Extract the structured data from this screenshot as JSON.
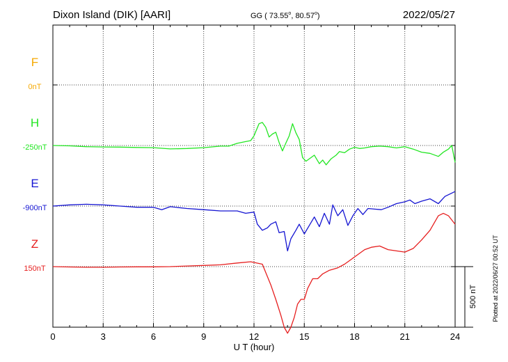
{
  "header": {
    "station": "Dixon Island (DIK)  [AARI]",
    "coords_prefix": "GG ( 73.55",
    "coords_sep": ",  80.57",
    "coords_suffix": ")",
    "degree_mark": "o",
    "date": "2022/05/27"
  },
  "footer_note": "Plotted at 2022/06/27 00:52 UT",
  "chart_data": {
    "type": "line",
    "title": "",
    "xlabel": "U T (hour)",
    "ylabel": "",
    "xlim": [
      0,
      24
    ],
    "xticks": [
      "0",
      "3",
      "6",
      "9",
      "12",
      "15",
      "18",
      "21",
      "24"
    ],
    "grid": true,
    "scale_bar": {
      "label": "500 nT",
      "value": 500
    },
    "series": [
      {
        "name": "F",
        "baseline_label": "0nT",
        "color": "#f5a800",
        "x": [],
        "y": []
      },
      {
        "name": "H",
        "baseline_label": "-250nT",
        "color": "#22e622",
        "x": [
          0,
          1,
          2,
          3,
          4,
          5,
          6,
          7,
          8,
          9,
          10,
          10.5,
          11,
          11.5,
          11.8,
          12,
          12.3,
          12.5,
          12.7,
          12.9,
          13.1,
          13.3,
          13.5,
          13.7,
          13.9,
          14.1,
          14.3,
          14.5,
          14.7,
          14.9,
          15.1,
          15.3,
          15.6,
          15.9,
          16.1,
          16.3,
          16.6,
          16.9,
          17.1,
          17.4,
          17.7,
          18,
          18.3,
          18.6,
          19,
          19.5,
          20,
          20.5,
          21,
          21.5,
          22,
          22.5,
          23,
          23.3,
          23.6,
          23.8,
          24
        ],
        "y": [
          0,
          -3,
          -10,
          -12,
          -13,
          -16,
          -18,
          -28,
          -25,
          -18,
          -5,
          -5,
          18,
          32,
          40,
          80,
          180,
          190,
          150,
          70,
          95,
          110,
          25,
          -45,
          20,
          80,
          180,
          105,
          50,
          -100,
          -130,
          -110,
          -80,
          -150,
          -120,
          -160,
          -110,
          -80,
          -50,
          -60,
          -30,
          -15,
          -25,
          -20,
          -10,
          -5,
          -10,
          -20,
          -10,
          -30,
          -55,
          -65,
          -90,
          -55,
          -30,
          0,
          -140
        ]
      },
      {
        "name": "E",
        "baseline_label": "-900nT",
        "color": "#1414d2",
        "x": [
          0,
          1,
          2,
          3,
          4,
          5,
          6,
          6.5,
          7,
          8,
          9,
          10,
          11,
          11.5,
          12,
          12.2,
          12.5,
          12.8,
          13,
          13.3,
          13.5,
          13.8,
          14,
          14.2,
          14.5,
          14.7,
          15,
          15.3,
          15.6,
          15.9,
          16.2,
          16.5,
          16.7,
          17,
          17.3,
          17.6,
          17.9,
          18.2,
          18.5,
          18.8,
          19.2,
          19.6,
          20,
          20.5,
          21,
          21.3,
          21.6,
          22,
          22.5,
          23,
          23.4,
          23.7,
          24
        ],
        "y": [
          0,
          10,
          15,
          10,
          0,
          -10,
          -10,
          -30,
          -5,
          -20,
          -30,
          -40,
          -40,
          -60,
          -50,
          -150,
          -200,
          -180,
          -150,
          -130,
          -220,
          -210,
          -370,
          -270,
          -200,
          -150,
          -230,
          -160,
          -90,
          -170,
          -60,
          -150,
          10,
          -80,
          -30,
          -160,
          -80,
          -20,
          -70,
          -20,
          -25,
          -30,
          -10,
          20,
          35,
          50,
          20,
          40,
          60,
          20,
          80,
          100,
          120
        ]
      },
      {
        "name": "Z",
        "baseline_label": "150nT",
        "color": "#e61e1e",
        "x": [
          0,
          1,
          2,
          3,
          4,
          5,
          6,
          7,
          8,
          9,
          10,
          11,
          11.8,
          12.5,
          13,
          13.3,
          13.6,
          13.8,
          14,
          14.2,
          14.4,
          14.6,
          14.8,
          15,
          15.2,
          15.5,
          15.8,
          16.1,
          16.5,
          17,
          17.4,
          17.8,
          18.2,
          18.6,
          19,
          19.5,
          20,
          20.5,
          21,
          21.5,
          22,
          22.5,
          23,
          23.3,
          23.6,
          24
        ],
        "y": [
          0,
          -3,
          -5,
          -5,
          -3,
          -2,
          -2,
          0,
          5,
          10,
          15,
          30,
          40,
          20,
          -150,
          -270,
          -400,
          -500,
          -550,
          -500,
          -420,
          -310,
          -270,
          -270,
          -180,
          -100,
          -100,
          -60,
          -30,
          -10,
          20,
          60,
          100,
          140,
          160,
          170,
          140,
          130,
          120,
          150,
          220,
          300,
          420,
          440,
          420,
          350
        ]
      }
    ]
  }
}
